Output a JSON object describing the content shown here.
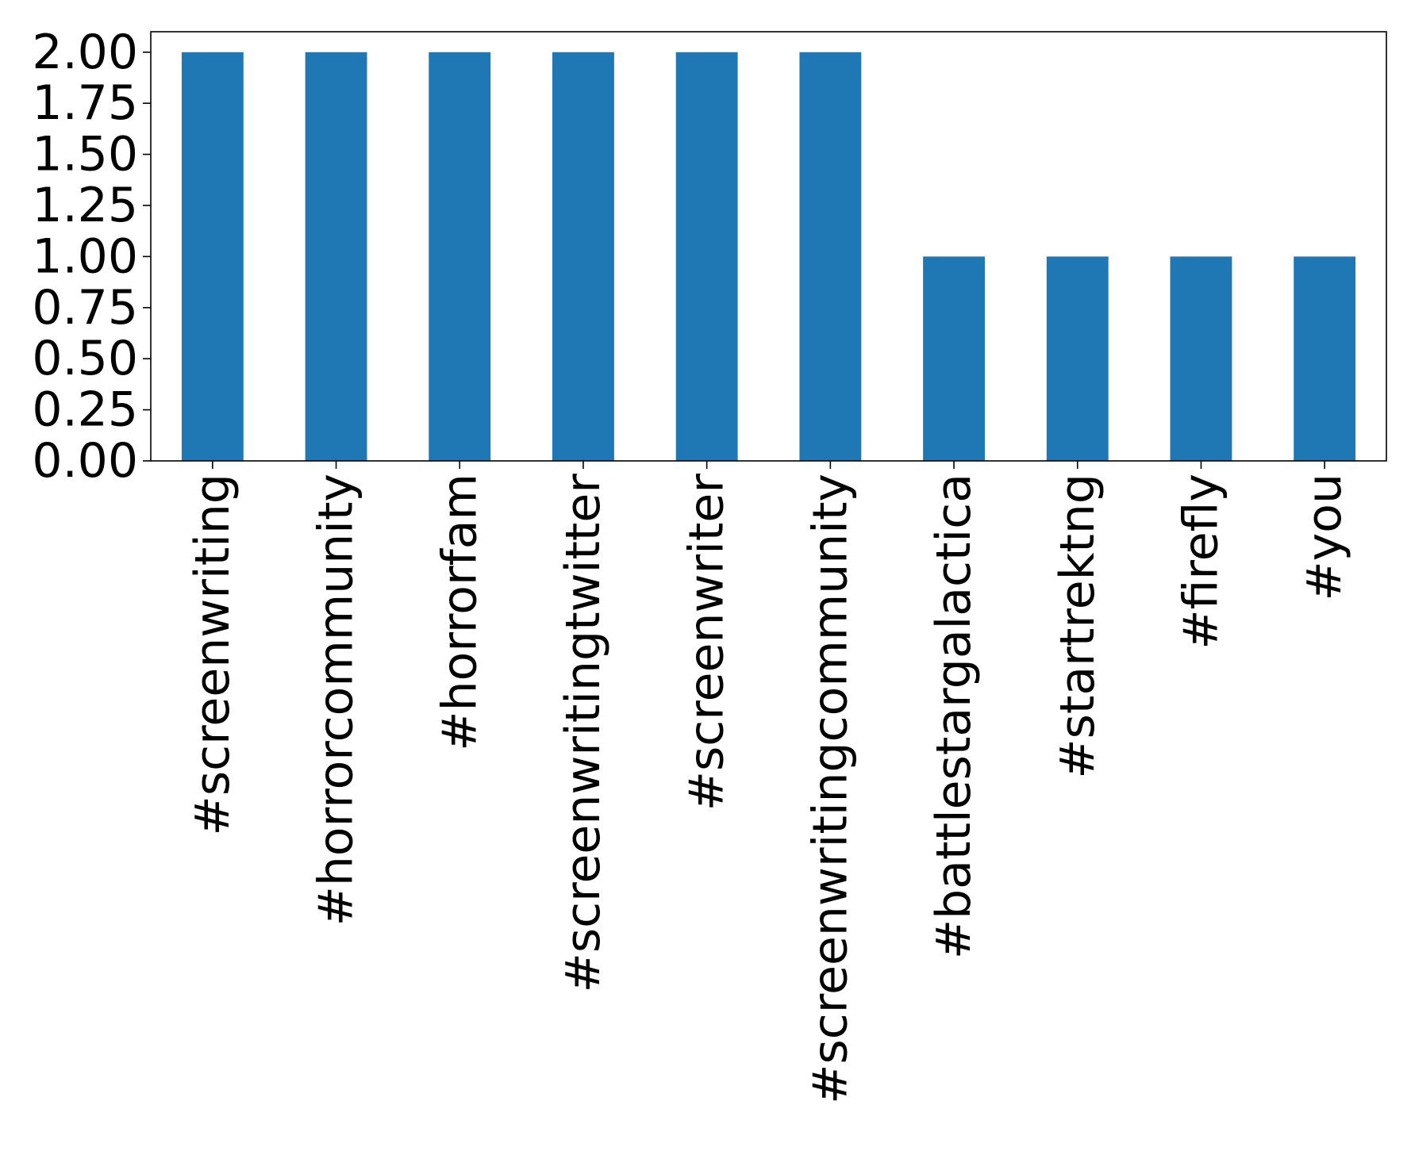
{
  "chart_data": {
    "type": "bar",
    "categories": [
      "#screenwriting",
      "#horrorcommunity",
      "#horrorfam",
      "#screenwritingtwitter",
      "#screenwriter",
      "#screenwritingcommunity",
      "#battlestargalactica",
      "#startrektng",
      "#firefly",
      "#you"
    ],
    "values": [
      2,
      2,
      2,
      2,
      2,
      2,
      1,
      1,
      1,
      1
    ],
    "title": "",
    "xlabel": "",
    "ylabel": "",
    "ylim": [
      0,
      2.1
    ],
    "yticks": [
      "0.00",
      "0.25",
      "0.50",
      "0.75",
      "1.00",
      "1.25",
      "1.50",
      "1.75",
      "2.00"
    ],
    "ytick_values": [
      0,
      0.25,
      0.5,
      0.75,
      1.0,
      1.25,
      1.5,
      1.75,
      2.0
    ],
    "bar_color": "#1f77b4",
    "grid": false,
    "legend": "none"
  }
}
